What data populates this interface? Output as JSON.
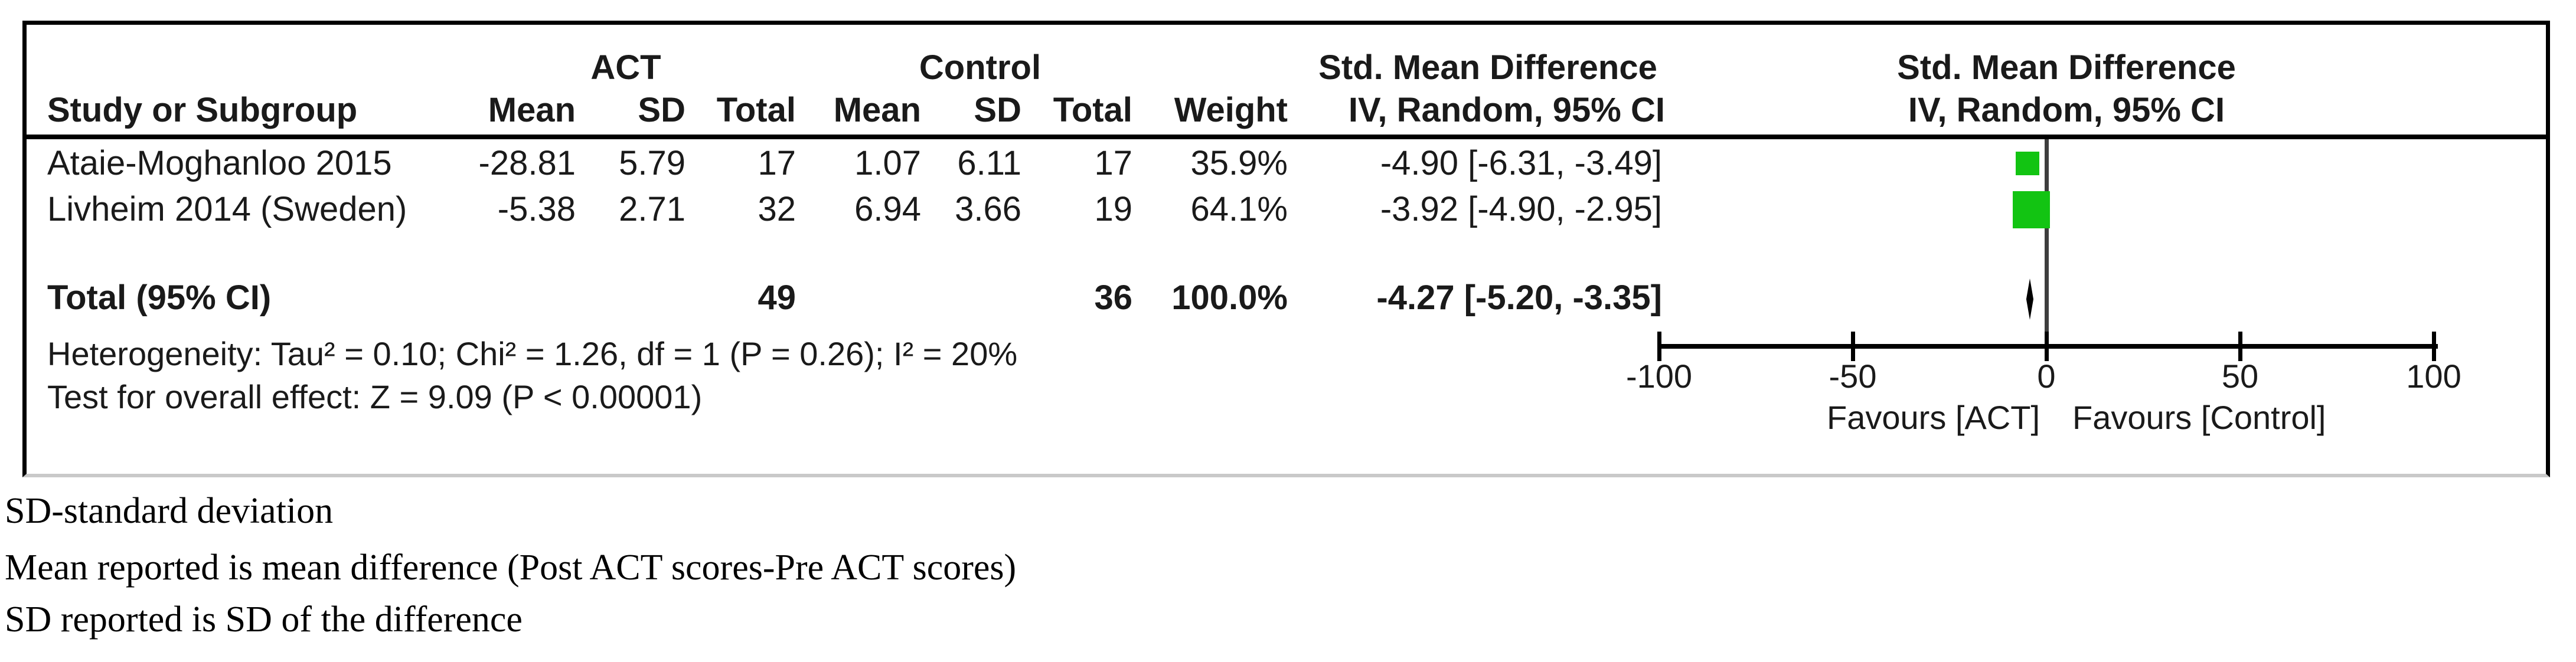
{
  "table": {
    "group_headers": {
      "act": "ACT",
      "control": "Control",
      "smd_left": "Std. Mean Difference",
      "smd_right": "Std. Mean Difference"
    },
    "col_headers": {
      "study": "Study or Subgroup",
      "mean_act": "Mean",
      "sd_act": "SD",
      "total_act": "Total",
      "mean_control": "Mean",
      "sd_control": "SD",
      "total_control": "Total",
      "weight": "Weight",
      "iv_left": "IV, Random, 95% CI",
      "iv_right": "IV, Random, 95% CI"
    },
    "studies": [
      {
        "name": "Ataie-Moghanloo 2015",
        "mean_act": "-28.81",
        "sd_act": "5.79",
        "total_act": "17",
        "mean_control": "1.07",
        "sd_control": "6.11",
        "total_control": "17",
        "weight": "35.9%",
        "ci_text": "-4.90 [-6.31, -3.49]"
      },
      {
        "name": "Livheim 2014 (Sweden)",
        "mean_act": "-5.38",
        "sd_act": "2.71",
        "total_act": "32",
        "mean_control": "6.94",
        "sd_control": "3.66",
        "total_control": "19",
        "weight": "64.1%",
        "ci_text": "-3.92 [-4.90, -2.95]"
      }
    ],
    "total_row": {
      "label": "Total (95% CI)",
      "total_act": "49",
      "total_control": "36",
      "weight": "100.0%",
      "ci_text": "-4.27 [-5.20, -3.35]"
    },
    "heterogeneity": "Heterogeneity: Tau² = 0.10; Chi² = 1.26, df = 1 (P = 0.26); I² = 20%",
    "overall_effect": "Test for overall effect: Z = 9.09 (P < 0.00001)"
  },
  "plot": {
    "favours_left": "Favours [ACT]",
    "favours_right": "Favours [Control]"
  },
  "footnotes": [
    "SD-standard deviation",
    "Mean reported is mean difference (Post ACT scores-Pre ACT scores)",
    "SD reported is SD of the difference"
  ],
  "colors": {
    "marker_green": "#12c412",
    "zero_line": "#3d3d3d",
    "axis_black": "#000000",
    "bottom_border_gray": "#c9c9c9"
  },
  "chart_data": {
    "type": "forest",
    "title": "Std. Mean Difference, IV, Random, 95% CI",
    "axis": {
      "range": [
        -100,
        100
      ],
      "ticks": [
        -100,
        -50,
        0,
        50,
        100
      ]
    },
    "studies": [
      {
        "name": "Ataie-Moghanloo 2015",
        "smd": -4.9,
        "ci": [
          -6.31,
          -3.49
        ],
        "weight_pct": 35.9
      },
      {
        "name": "Livheim 2014 (Sweden)",
        "smd": -3.92,
        "ci": [
          -4.9,
          -2.95
        ],
        "weight_pct": 64.1
      }
    ],
    "total": {
      "smd": -4.27,
      "ci": [
        -5.2,
        -3.35
      ],
      "weight_pct": 100.0
    },
    "heterogeneity": {
      "tau2": 0.1,
      "chi2": 1.26,
      "df": 1,
      "p": 0.26,
      "i2_pct": 20
    },
    "overall_effect": {
      "z": 9.09,
      "p": "< 0.00001"
    },
    "favours": [
      "Favours [ACT]",
      "Favours [Control]"
    ],
    "legend_position": "none",
    "grid": false
  }
}
